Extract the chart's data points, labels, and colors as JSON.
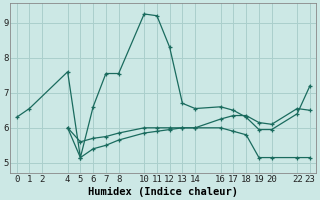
{
  "xlabel": "Humidex (Indice chaleur)",
  "background_color": "#cce8e5",
  "grid_color": "#aacfcc",
  "line_color": "#1a6b5e",
  "lines": [
    {
      "x": [
        0,
        1,
        4,
        5,
        6,
        7,
        8,
        10,
        11,
        12,
        13,
        14,
        16,
        17,
        18,
        19,
        20,
        22,
        23
      ],
      "y": [
        6.3,
        6.55,
        7.6,
        5.15,
        6.6,
        7.55,
        7.55,
        9.25,
        9.2,
        8.3,
        6.7,
        6.55,
        6.6,
        6.5,
        6.3,
        5.95,
        5.95,
        6.4,
        7.2
      ]
    },
    {
      "x": [
        4,
        5,
        6,
        7,
        8,
        10,
        11,
        12,
        13,
        14,
        16,
        17,
        18,
        19,
        20,
        22,
        23
      ],
      "y": [
        6.0,
        5.15,
        5.4,
        5.5,
        5.65,
        5.85,
        5.9,
        5.95,
        6.0,
        6.0,
        6.0,
        5.9,
        5.8,
        5.15,
        5.15,
        5.15,
        5.15
      ]
    },
    {
      "x": [
        4,
        5,
        6,
        7,
        8,
        10,
        11,
        12,
        13,
        14,
        16,
        17,
        18,
        19,
        20,
        22,
        23
      ],
      "y": [
        6.0,
        5.6,
        5.7,
        5.75,
        5.85,
        6.0,
        6.0,
        6.0,
        6.0,
        6.0,
        6.25,
        6.35,
        6.35,
        6.15,
        6.1,
        6.55,
        6.5
      ]
    }
  ],
  "xlim": [
    -0.5,
    23.5
  ],
  "ylim": [
    4.7,
    9.55
  ],
  "xticks": [
    0,
    1,
    2,
    4,
    5,
    6,
    7,
    8,
    10,
    11,
    12,
    13,
    14,
    16,
    17,
    18,
    19,
    20,
    22,
    23
  ],
  "yticks": [
    5,
    6,
    7,
    8,
    9
  ],
  "tick_fontsize": 6.5,
  "xlabel_fontsize": 7.5
}
